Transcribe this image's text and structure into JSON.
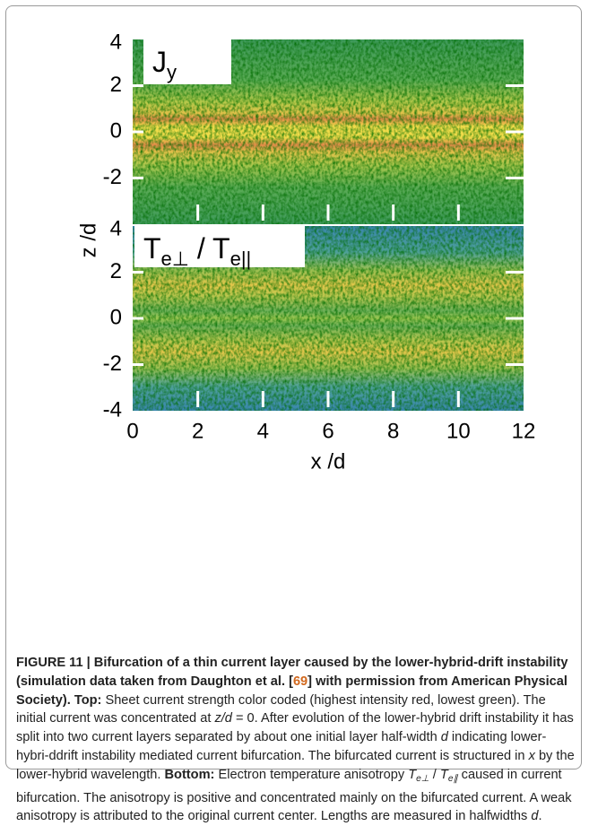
{
  "figure": {
    "xlim": [
      0,
      12
    ],
    "xticks": [
      0,
      2,
      4,
      6,
      8,
      10,
      12
    ],
    "xlabel": "x /d",
    "ylabel": "z /d",
    "panels": [
      {
        "label": [
          {
            "text": "J",
            "style": "n"
          },
          {
            "text": "y",
            "style": "sub"
          }
        ],
        "ylim": [
          -4,
          4
        ],
        "yticks": [
          4,
          2,
          0,
          -2
        ],
        "kind": "current"
      },
      {
        "label": [
          {
            "text": "T",
            "style": "n"
          },
          {
            "text": "e⊥",
            "style": "sub"
          },
          {
            "text": " / T",
            "style": "n"
          },
          {
            "text": "e||",
            "style": "sub"
          }
        ],
        "ylim": [
          -4,
          4
        ],
        "yticks": [
          4,
          2,
          0,
          -2,
          -4
        ],
        "kind": "anisotropy"
      }
    ]
  },
  "caption": {
    "runs": [
      {
        "text": "FIGURE 11 | Bifurcation of a thin current layer caused by the lower-hybrid-drift instability (simulation data taken from Daughton et al. [",
        "style": "b"
      },
      {
        "text": "69",
        "style": "link"
      },
      {
        "text": "] with permission from American Physical Society). Top:",
        "style": "b"
      },
      {
        "text": " Sheet current strength color coded (highest intensity red, lowest green). The initial current was concentrated at ",
        "style": "n"
      },
      {
        "text": "z/d",
        "style": "i"
      },
      {
        "text": " = 0. After evolution of the lower-hybrid drift instability it has split into two current layers separated by about one initial layer half-width ",
        "style": "n"
      },
      {
        "text": "d",
        "style": "i"
      },
      {
        "text": " indicating lower-hybri-ddrift instability mediated current bifurcation. The bifurcated current is structured in ",
        "style": "n"
      },
      {
        "text": "x",
        "style": "i"
      },
      {
        "text": " by the lower-hybrid wavelength. ",
        "style": "n"
      },
      {
        "text": "Bottom:",
        "style": "b"
      },
      {
        "text": " Electron temperature anisotropy ",
        "style": "n"
      },
      {
        "text": "T",
        "style": "i"
      },
      {
        "text": "e⊥",
        "style": "sub"
      },
      {
        "text": " / ",
        "style": "n"
      },
      {
        "text": "T",
        "style": "i"
      },
      {
        "text": "e∥",
        "style": "sub"
      },
      {
        "text": " caused in current bifurcation. The anisotropy is positive and concentrated mainly on the bifurcated current. A weak anisotropy is attributed to the original current center. Lengths are measured in halfwidths ",
        "style": "n"
      },
      {
        "text": "d",
        "style": "i"
      },
      {
        "text": ".",
        "style": "n"
      }
    ]
  }
}
